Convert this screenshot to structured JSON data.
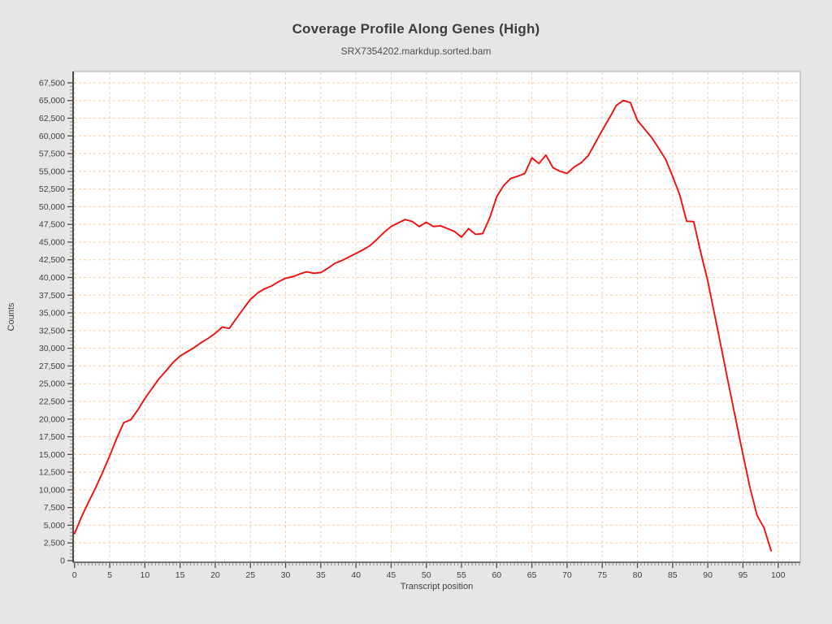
{
  "page": {
    "background": "#e6e6e6"
  },
  "chart_data": {
    "type": "line",
    "title": "Coverage Profile Along Genes (High)",
    "subtitle": "SRX7354202.markdup.sorted.bam",
    "xlabel": "Transcript position",
    "ylabel": "Counts",
    "xlim": [
      -0.2,
      103.15
    ],
    "ylim": [
      -230,
      69100
    ],
    "x_ticks": [
      0,
      5,
      10,
      15,
      20,
      25,
      30,
      35,
      40,
      45,
      50,
      55,
      60,
      65,
      70,
      75,
      80,
      85,
      90,
      95,
      100
    ],
    "y_tick_values": [
      0,
      2500,
      5000,
      7500,
      10000,
      12500,
      15000,
      17500,
      20000,
      22500,
      25000,
      27500,
      30000,
      32500,
      35000,
      37500,
      40000,
      42500,
      45000,
      47500,
      50000,
      52500,
      55000,
      57500,
      60000,
      62500,
      65000,
      67500
    ],
    "y_tick_labels": [
      "0",
      "2,500",
      "5,000",
      "7,500",
      "10,000",
      "12,500",
      "15,000",
      "17,500",
      "20,000",
      "22,500",
      "25,000",
      "27,500",
      "30,000",
      "32,500",
      "35,000",
      "37,500",
      "40,000",
      "42,500",
      "45,000",
      "47,500",
      "50,000",
      "52,500",
      "55,000",
      "57,500",
      "60,000",
      "62,500",
      "65,000",
      "67,500"
    ],
    "grid": true,
    "legend_position": "none",
    "line_color": "#f10e0e",
    "grid_color": "#f5cda6",
    "plot_background": "#ffffff",
    "border_color": "#a8a8a8",
    "spine_color": "#4b4b4b",
    "tick_text_color": "#3f3f3f",
    "x": [
      0,
      1,
      2,
      3,
      4,
      5,
      6,
      7,
      8,
      9,
      10,
      11,
      12,
      13,
      14,
      15,
      16,
      17,
      18,
      19,
      20,
      21,
      22,
      23,
      24,
      25,
      26,
      27,
      28,
      29,
      30,
      31,
      32,
      33,
      34,
      35,
      36,
      37,
      38,
      39,
      40,
      41,
      42,
      43,
      44,
      45,
      46,
      47,
      48,
      49,
      50,
      51,
      52,
      53,
      54,
      55,
      56,
      57,
      58,
      59,
      60,
      61,
      62,
      63,
      64,
      65,
      66,
      67,
      68,
      69,
      70,
      71,
      72,
      73,
      74,
      75,
      76,
      77,
      78,
      79,
      80,
      81,
      82,
      83,
      84,
      85,
      86,
      87,
      88,
      89,
      90,
      91,
      92,
      93,
      94,
      95,
      96,
      97,
      98,
      99
    ],
    "y": [
      3800,
      6200,
      8300,
      10300,
      12500,
      14800,
      17300,
      19500,
      19900,
      21300,
      22900,
      24300,
      25700,
      26800,
      28000,
      28900,
      29500,
      30100,
      30800,
      31400,
      32100,
      33000,
      32800,
      34200,
      35600,
      36900,
      37800,
      38400,
      38800,
      39400,
      39900,
      40100,
      40500,
      40800,
      40600,
      40700,
      41300,
      42000,
      42400,
      42900,
      43400,
      43900,
      44500,
      45400,
      46400,
      47200,
      47700,
      48200,
      47900,
      47200,
      47800,
      47200,
      47300,
      46900,
      46500,
      45700,
      46900,
      46100,
      46200,
      48400,
      51400,
      53000,
      54000,
      54300,
      54700,
      56900,
      56100,
      57300,
      55500,
      55000,
      54700,
      55600,
      56200,
      57200,
      59000,
      60800,
      62500,
      64300,
      65000,
      64700,
      62200,
      61000,
      59800,
      58300,
      56700,
      54300,
      51700,
      47950,
      47900,
      43500,
      39500,
      34600,
      29700,
      24700,
      19800,
      15000,
      10300,
      6400,
      4600,
      1400
    ]
  }
}
